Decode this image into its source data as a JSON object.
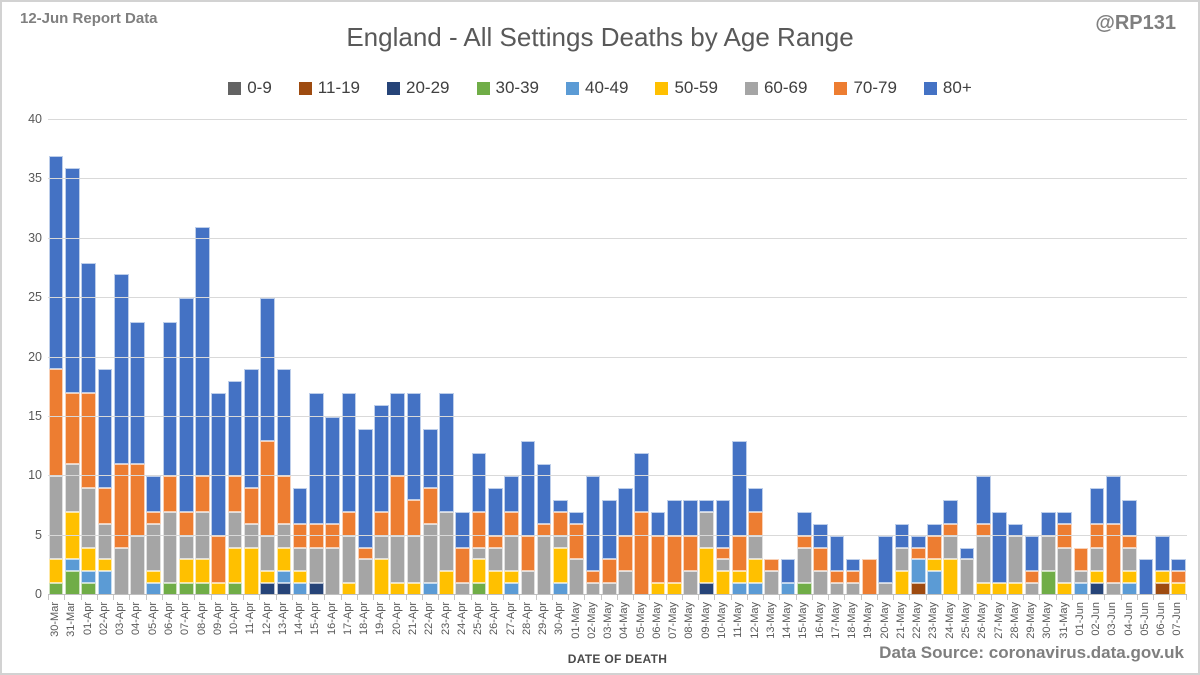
{
  "header": {
    "report_note": "12-Jun Report Data",
    "handle": "@RP131"
  },
  "footer": {
    "source": "Data Source: coronavirus.data.gov.uk"
  },
  "chart_data": {
    "type": "bar",
    "stacked": true,
    "title": "England - All Settings Deaths by Age Range",
    "xlabel": "DATE OF DEATH",
    "ylabel": "",
    "ylim": [
      0,
      40
    ],
    "yticks": [
      0,
      5,
      10,
      15,
      20,
      25,
      30,
      35,
      40
    ],
    "grid": true,
    "legend_position": "top",
    "categories": [
      "30-Mar",
      "31-Mar",
      "01-Apr",
      "02-Apr",
      "03-Apr",
      "04-Apr",
      "05-Apr",
      "06-Apr",
      "07-Apr",
      "08-Apr",
      "09-Apr",
      "10-Apr",
      "11-Apr",
      "12-Apr",
      "13-Apr",
      "14-Apr",
      "15-Apr",
      "16-Apr",
      "17-Apr",
      "18-Apr",
      "19-Apr",
      "20-Apr",
      "21-Apr",
      "22-Apr",
      "23-Apr",
      "24-Apr",
      "25-Apr",
      "26-Apr",
      "27-Apr",
      "28-Apr",
      "29-Apr",
      "30-Apr",
      "01-May",
      "02-May",
      "03-May",
      "04-May",
      "05-May",
      "06-May",
      "07-May",
      "08-May",
      "09-May",
      "10-May",
      "11-May",
      "12-May",
      "13-May",
      "14-May",
      "15-May",
      "16-May",
      "17-May",
      "18-May",
      "19-May",
      "20-May",
      "21-May",
      "22-May",
      "23-May",
      "24-May",
      "25-May",
      "26-May",
      "27-May",
      "28-May",
      "29-May",
      "30-May",
      "31-May",
      "01-Jun",
      "02-Jun",
      "03-Jun",
      "04-Jun",
      "05-Jun",
      "06-Jun",
      "07-Jun"
    ],
    "series": [
      {
        "name": "0-9",
        "color": "#636363",
        "values": [
          0,
          0,
          0,
          0,
          0,
          0,
          0,
          0,
          0,
          0,
          0,
          0,
          0,
          0,
          0,
          0,
          0,
          0,
          0,
          0,
          0,
          0,
          0,
          0,
          0,
          0,
          0,
          0,
          0,
          0,
          0,
          0,
          0,
          0,
          0,
          0,
          0,
          0,
          0,
          0,
          0,
          0,
          0,
          0,
          0,
          0,
          0,
          0,
          0,
          0,
          0,
          0,
          0,
          0,
          0,
          0,
          0,
          0,
          0,
          0,
          0,
          0,
          0,
          0,
          0,
          0,
          0,
          0,
          0,
          0
        ]
      },
      {
        "name": "11-19",
        "color": "#9E4B10",
        "values": [
          0,
          0,
          0,
          0,
          0,
          0,
          0,
          0,
          0,
          0,
          0,
          0,
          0,
          0,
          0,
          0,
          0,
          0,
          0,
          0,
          0,
          0,
          0,
          0,
          0,
          0,
          0,
          0,
          0,
          0,
          0,
          0,
          0,
          0,
          0,
          0,
          0,
          0,
          0,
          0,
          0,
          0,
          0,
          0,
          0,
          0,
          0,
          0,
          0,
          0,
          0,
          0,
          0,
          1,
          0,
          0,
          0,
          0,
          0,
          0,
          0,
          0,
          0,
          0,
          0,
          0,
          0,
          0,
          1,
          0
        ]
      },
      {
        "name": "20-29",
        "color": "#264478",
        "values": [
          0,
          0,
          0,
          0,
          0,
          0,
          0,
          0,
          0,
          0,
          0,
          0,
          0,
          1,
          1,
          0,
          1,
          0,
          0,
          0,
          0,
          0,
          0,
          0,
          0,
          0,
          0,
          0,
          0,
          0,
          0,
          0,
          0,
          0,
          0,
          0,
          0,
          0,
          0,
          0,
          1,
          0,
          0,
          0,
          0,
          0,
          0,
          0,
          0,
          0,
          0,
          0,
          0,
          0,
          0,
          0,
          0,
          0,
          0,
          0,
          0,
          0,
          0,
          0,
          1,
          0,
          0,
          0,
          0,
          0
        ]
      },
      {
        "name": "30-39",
        "color": "#70AD47",
        "values": [
          1,
          2,
          1,
          0,
          0,
          0,
          0,
          1,
          1,
          1,
          0,
          1,
          0,
          0,
          0,
          0,
          0,
          0,
          0,
          0,
          0,
          0,
          0,
          0,
          0,
          0,
          1,
          0,
          0,
          0,
          0,
          0,
          0,
          0,
          0,
          0,
          0,
          0,
          0,
          0,
          0,
          0,
          0,
          0,
          0,
          0,
          1,
          0,
          0,
          0,
          0,
          0,
          0,
          0,
          0,
          0,
          0,
          0,
          0,
          0,
          0,
          2,
          0,
          0,
          0,
          0,
          0,
          0,
          0,
          0
        ]
      },
      {
        "name": "40-49",
        "color": "#5B9BD5",
        "values": [
          0,
          1,
          1,
          2,
          0,
          0,
          1,
          0,
          0,
          0,
          0,
          0,
          0,
          0,
          1,
          1,
          0,
          0,
          0,
          0,
          0,
          0,
          0,
          1,
          0,
          0,
          0,
          0,
          1,
          0,
          0,
          1,
          0,
          0,
          0,
          0,
          0,
          0,
          0,
          0,
          0,
          0,
          1,
          1,
          0,
          1,
          0,
          0,
          0,
          0,
          0,
          0,
          0,
          2,
          2,
          0,
          0,
          0,
          0,
          0,
          0,
          0,
          0,
          1,
          0,
          0,
          1,
          0,
          0,
          0
        ]
      },
      {
        "name": "50-59",
        "color": "#FFC000",
        "values": [
          2,
          4,
          2,
          1,
          0,
          0,
          1,
          0,
          2,
          2,
          1,
          3,
          4,
          1,
          2,
          1,
          0,
          0,
          1,
          0,
          3,
          1,
          1,
          0,
          2,
          0,
          2,
          2,
          1,
          0,
          0,
          3,
          0,
          0,
          0,
          0,
          0,
          1,
          1,
          0,
          3,
          2,
          1,
          2,
          0,
          0,
          0,
          0,
          0,
          0,
          0,
          0,
          2,
          0,
          1,
          3,
          0,
          1,
          1,
          1,
          0,
          0,
          1,
          0,
          1,
          0,
          1,
          0,
          1,
          1
        ]
      },
      {
        "name": "60-69",
        "color": "#A5A5A5",
        "values": [
          7,
          4,
          5,
          3,
          4,
          5,
          4,
          6,
          2,
          4,
          0,
          3,
          2,
          3,
          2,
          2,
          3,
          4,
          4,
          3,
          2,
          4,
          4,
          5,
          5,
          1,
          1,
          2,
          3,
          2,
          5,
          1,
          3,
          1,
          1,
          2,
          0,
          0,
          0,
          2,
          3,
          1,
          0,
          2,
          2,
          0,
          3,
          2,
          1,
          1,
          0,
          1,
          2,
          0,
          0,
          2,
          3,
          4,
          0,
          4,
          1,
          3,
          3,
          1,
          2,
          1,
          2,
          0,
          0,
          0
        ]
      },
      {
        "name": "70-79",
        "color": "#ED7D31",
        "values": [
          9,
          6,
          8,
          3,
          7,
          6,
          1,
          3,
          2,
          3,
          4,
          3,
          3,
          8,
          4,
          2,
          2,
          2,
          2,
          1,
          2,
          5,
          3,
          3,
          0,
          3,
          3,
          1,
          2,
          3,
          1,
          2,
          3,
          1,
          2,
          3,
          7,
          4,
          4,
          3,
          0,
          1,
          3,
          2,
          1,
          0,
          1,
          2,
          1,
          1,
          3,
          0,
          0,
          1,
          2,
          1,
          0,
          1,
          0,
          0,
          1,
          0,
          2,
          2,
          2,
          5,
          1,
          0,
          0,
          1
        ]
      },
      {
        "name": "80+",
        "color": "#4472C4",
        "values": [
          18,
          19,
          11,
          10,
          16,
          12,
          3,
          13,
          18,
          21,
          12,
          8,
          10,
          12,
          9,
          3,
          11,
          9,
          10,
          10,
          9,
          7,
          9,
          5,
          10,
          3,
          5,
          4,
          3,
          8,
          5,
          1,
          1,
          8,
          5,
          4,
          5,
          2,
          3,
          3,
          1,
          4,
          8,
          2,
          0,
          2,
          2,
          2,
          3,
          1,
          0,
          4,
          2,
          1,
          1,
          2,
          1,
          4,
          6,
          1,
          3,
          2,
          1,
          0,
          3,
          4,
          3,
          3,
          3,
          1
        ]
      }
    ]
  }
}
